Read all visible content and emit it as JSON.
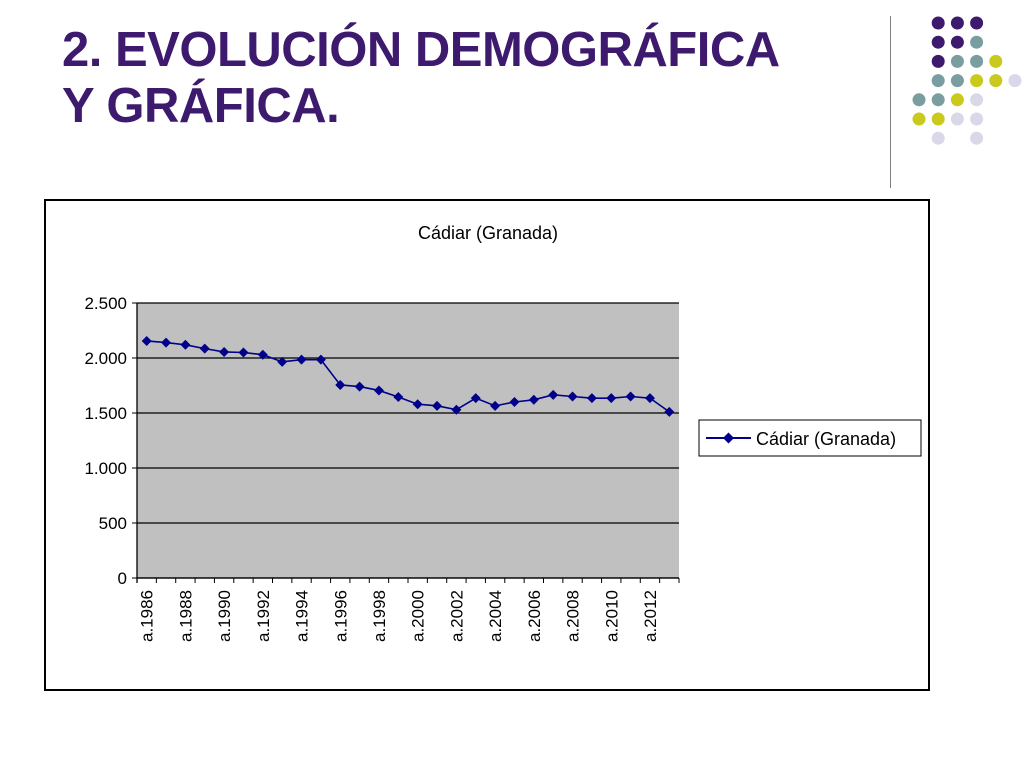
{
  "slide": {
    "title_line1": "2. EVOLUCIÓN DEMOGRÁFICA",
    "title_line2": "Y GRÁFICA."
  },
  "decor": {
    "dot_colors": {
      "purple": "#3d1a6e",
      "teal": "#7a9e9f",
      "yellow": "#c9c91e",
      "lavender": "#d8d8e8"
    },
    "dot_grid": [
      [
        null,
        "purple",
        "purple",
        "purple"
      ],
      [
        null,
        "purple",
        "purple",
        "teal"
      ],
      [
        null,
        "purple",
        "teal",
        "teal",
        "yellow"
      ],
      [
        null,
        "teal",
        "teal",
        "yellow",
        "yellow",
        "lavender"
      ],
      [
        "teal",
        "teal",
        "yellow",
        "lavender"
      ],
      [
        "yellow",
        "yellow",
        "lavender",
        "lavender"
      ],
      [
        null,
        "lavender",
        null,
        "lavender"
      ]
    ]
  },
  "chart_data": {
    "type": "line",
    "title": "Cádiar (Granada)",
    "xlabel": "",
    "ylabel": "",
    "ylim": [
      0,
      2500
    ],
    "yticks": [
      0,
      500,
      1000,
      1500,
      2000,
      2500
    ],
    "ytick_labels": [
      "0",
      "500",
      "1.000",
      "1.500",
      "2.000",
      "2.500"
    ],
    "grid": true,
    "plot_background": "#c0c0c0",
    "legend_position": "right",
    "x_tick_labels": [
      "a.1986",
      "a.1988",
      "a.1990",
      "a.1992",
      "a.1994",
      "a.1996",
      "a.1998",
      "a.2000",
      "a.2002",
      "a.2004",
      "a.2006",
      "a.2008",
      "a.2010",
      "a.2012"
    ],
    "x": [
      1986,
      1987,
      1988,
      1989,
      1990,
      1991,
      1992,
      1993,
      1994,
      1995,
      1996,
      1997,
      1998,
      1999,
      2000,
      2001,
      2002,
      2003,
      2004,
      2005,
      2006,
      2007,
      2008,
      2009,
      2010,
      2011,
      2012,
      2013
    ],
    "series": [
      {
        "name": "Cádiar (Granada)",
        "color": "#00008b",
        "marker": "diamond",
        "values": [
          2155,
          2140,
          2120,
          2085,
          2055,
          2050,
          2030,
          1965,
          1985,
          1985,
          1755,
          1740,
          1705,
          1645,
          1580,
          1565,
          1530,
          1635,
          1565,
          1600,
          1620,
          1665,
          1650,
          1635,
          1635,
          1650,
          1635,
          1510
        ]
      }
    ]
  }
}
